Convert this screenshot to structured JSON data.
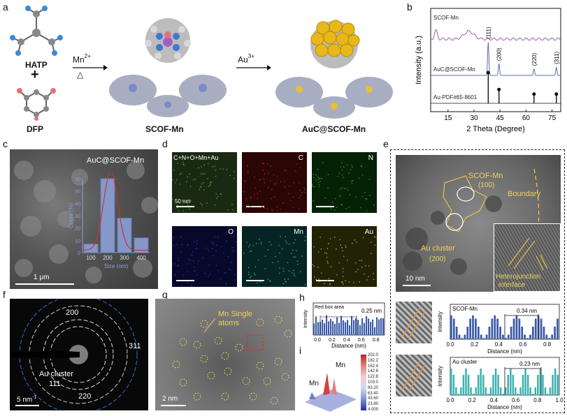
{
  "panel_letters": [
    "a",
    "b",
    "c",
    "d",
    "e",
    "f",
    "g",
    "h",
    "i"
  ],
  "panel_a": {
    "hatp_label": "HATP",
    "plus": "+",
    "dfp_label": "DFP",
    "mn_reagent": "Mn",
    "mn_charge": "2+",
    "heat_symbol": "△",
    "au_reagent": "Au",
    "au_charge": "3+",
    "scof_label": "SCOF-Mn",
    "auc_label": "AuC@SCOF-Mn"
  },
  "panel_b": {
    "chart_data": {
      "type": "line",
      "xlabel": "2 Theta (Degree)",
      "ylabel": "Intensity (a.u.)",
      "xlim": [
        5,
        80
      ],
      "xticks": [
        15,
        30,
        45,
        60,
        75
      ],
      "series": [
        {
          "name": "SCOF-Mn",
          "color": "#9b5fa8",
          "peaks": [
            [
              8,
              0.6
            ],
            [
              27,
              0.55
            ]
          ]
        },
        {
          "name": "AuC@SCOF-Mn",
          "color": "#5a6fb0",
          "peaks": [
            [
              38.2,
              1.0
            ],
            [
              44.4,
              0.35
            ],
            [
              64.6,
              0.2
            ],
            [
              77.5,
              0.25
            ]
          ]
        },
        {
          "name": "Au-PDF#65-8601",
          "color": "#111111",
          "sticks": [
            [
              38.2,
              1.0
            ],
            [
              44.4,
              0.45
            ],
            [
              64.6,
              0.3
            ],
            [
              77.5,
              0.3
            ]
          ]
        }
      ],
      "peak_labels": [
        "(111)",
        "(200)",
        "(220)",
        "(311)"
      ]
    }
  },
  "panel_c": {
    "sample_label": "AuC@SCOF-Mn",
    "scale_label": "1 μm",
    "chart_data": {
      "type": "bar",
      "categories": [
        100,
        200,
        300,
        400
      ],
      "values": [
        7,
        60,
        28,
        12
      ],
      "xlabel": "Size (nm)",
      "ylabel": "Count (%)",
      "yticks": [
        0,
        10,
        20,
        30,
        40,
        50,
        60
      ],
      "ylim": [
        0,
        60
      ],
      "bar_color": "#8aa0d8",
      "fit_color": "#d43030"
    }
  },
  "panel_d": {
    "maps": [
      {
        "tag": "C+N+O+Mn+Au",
        "color": "#5a8a3a"
      },
      {
        "tag": "C",
        "color": "#b01818"
      },
      {
        "tag": "N",
        "color": "#2a8a2a"
      },
      {
        "tag": "O",
        "color": "#2030a8"
      },
      {
        "tag": "Mn",
        "color": "#20a0a0"
      },
      {
        "tag": "Au",
        "color": "#a0a020"
      }
    ],
    "scale_label": "50 nm"
  },
  "panel_e": {
    "scof_label": "SCOF-Mn",
    "scof_plane": "(100)",
    "boundary_label": "Boundary",
    "au_label": "Au cluster",
    "au_plane": "(200)",
    "hetero_label": "Heterojunction",
    "interface_label": "interface",
    "scale_label": "10 nm",
    "profile1": {
      "name": "SCOF-Mn",
      "spacing": "0.34 nm",
      "xticks": [
        "0.0",
        "0.2",
        "0.4",
        "0.6",
        "0.8"
      ],
      "ylabel": "Intensity",
      "xlabel": "Distance (nm)",
      "color": "#3a5aa8"
    },
    "profile2": {
      "name": "Au cluster",
      "spacing": "0.23 nm",
      "xticks": [
        "0.0",
        "0.2",
        "0.4",
        "0.6",
        "0.8",
        "1.0"
      ],
      "ylabel": "Intensity",
      "xlabel": "Distance (nm)",
      "color": "#3ab0b0"
    }
  },
  "panel_f": {
    "ring_200": "200",
    "ring_311": "311",
    "au_label": "Au cluster",
    "ring_111": "111",
    "ring_220": "220",
    "scale_label": "5 nm",
    "scale_sup": "-1"
  },
  "panel_g": {
    "mn_label": "Mn Single",
    "mn_label2": "atoms",
    "scale_label": "2 nm"
  },
  "panel_h": {
    "box_label": "Red box area",
    "spacing": "0.25 nm",
    "ylabel": "Intensity",
    "xlabel": "Distance (nm)",
    "xticks": [
      "0.0",
      "0.2",
      "0.4",
      "0.6",
      "0.8"
    ],
    "color": "#3a5aa8"
  },
  "panel_i": {
    "mn_left": "Mn",
    "mn_right": "Mn",
    "colorbar": [
      "202.0",
      "182.2",
      "162.4",
      "142.6",
      "122.8",
      "103.0",
      "83.20",
      "63.40",
      "43.60",
      "23.80",
      "4.000"
    ]
  }
}
